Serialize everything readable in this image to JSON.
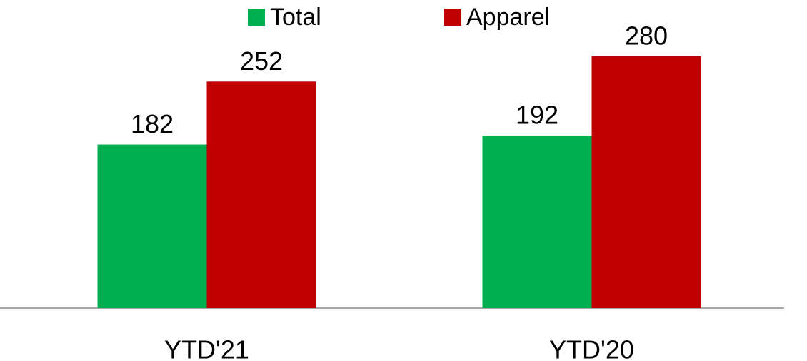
{
  "chart_data": {
    "type": "bar",
    "categories": [
      "YTD'21",
      "YTD'20"
    ],
    "series": [
      {
        "name": "Total",
        "color": "#00b050",
        "values": [
          182,
          192
        ]
      },
      {
        "name": "Apparel",
        "color": "#c00000",
        "values": [
          252,
          280
        ]
      }
    ],
    "legend": "top"
  }
}
